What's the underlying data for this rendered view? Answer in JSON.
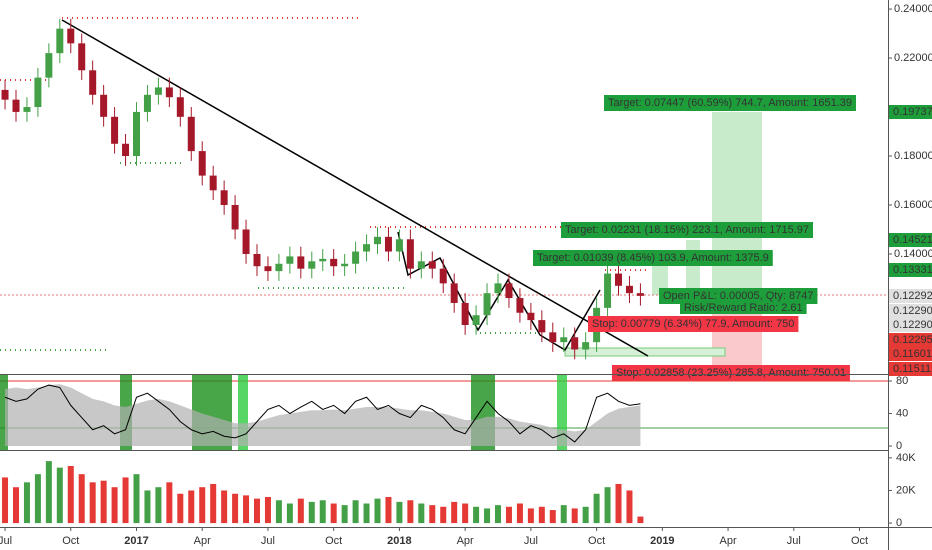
{
  "chart_data": {
    "type": "candlestick",
    "x": [
      0,
      0.5,
      1,
      1.5,
      2,
      2.5,
      3,
      3.5,
      4,
      4.5,
      5,
      5.5,
      6,
      6.5,
      7,
      7.5,
      8,
      8.5,
      9,
      9.5,
      10,
      10.5,
      11,
      11.5,
      12,
      12.5,
      13,
      13.5,
      14,
      14.5,
      15,
      15.5,
      16,
      16.5,
      17,
      17.5,
      18,
      18.5,
      19,
      19.5,
      20,
      20.5,
      21,
      21.5,
      22,
      22.5,
      23,
      23.5,
      24,
      24.5,
      25,
      25.5,
      26,
      26.5,
      27,
      27.5,
      28,
      28.5,
      29
    ],
    "open": [
      0.207,
      0.203,
      0.198,
      0.2,
      0.212,
      0.222,
      0.232,
      0.226,
      0.215,
      0.205,
      0.196,
      0.185,
      0.18,
      0.198,
      0.205,
      0.208,
      0.204,
      0.196,
      0.182,
      0.172,
      0.166,
      0.16,
      0.15,
      0.14,
      0.135,
      0.133,
      0.136,
      0.139,
      0.134,
      0.137,
      0.138,
      0.135,
      0.136,
      0.141,
      0.144,
      0.147,
      0.141,
      0.146,
      0.134,
      0.137,
      0.134,
      0.128,
      0.12,
      0.111,
      0.115,
      0.124,
      0.128,
      0.122,
      0.116,
      0.113,
      0.108,
      0.104,
      0.106,
      0.101,
      0.104,
      0.118,
      0.132,
      0.127,
      0.124
    ],
    "high": [
      0.211,
      0.207,
      0.204,
      0.216,
      0.226,
      0.236,
      0.236,
      0.23,
      0.219,
      0.209,
      0.2,
      0.189,
      0.202,
      0.209,
      0.212,
      0.212,
      0.208,
      0.2,
      0.186,
      0.176,
      0.17,
      0.164,
      0.154,
      0.144,
      0.139,
      0.14,
      0.143,
      0.143,
      0.141,
      0.142,
      0.142,
      0.14,
      0.145,
      0.148,
      0.151,
      0.151,
      0.15,
      0.15,
      0.141,
      0.141,
      0.138,
      0.132,
      0.124,
      0.119,
      0.128,
      0.132,
      0.132,
      0.126,
      0.12,
      0.117,
      0.112,
      0.11,
      0.11,
      0.108,
      0.122,
      0.136,
      0.136,
      0.131,
      0.128
    ],
    "low": [
      0.199,
      0.194,
      0.194,
      0.196,
      0.208,
      0.218,
      0.222,
      0.211,
      0.201,
      0.192,
      0.181,
      0.176,
      0.176,
      0.194,
      0.201,
      0.2,
      0.192,
      0.178,
      0.168,
      0.162,
      0.156,
      0.146,
      0.136,
      0.131,
      0.129,
      0.129,
      0.132,
      0.13,
      0.13,
      0.133,
      0.131,
      0.131,
      0.132,
      0.137,
      0.14,
      0.137,
      0.137,
      0.13,
      0.13,
      0.13,
      0.124,
      0.116,
      0.107,
      0.107,
      0.111,
      0.12,
      0.118,
      0.112,
      0.109,
      0.104,
      0.1,
      0.1,
      0.097,
      0.097,
      0.1,
      0.114,
      0.123,
      0.12,
      0.1189
    ],
    "close": [
      0.203,
      0.198,
      0.2,
      0.212,
      0.222,
      0.232,
      0.226,
      0.215,
      0.205,
      0.196,
      0.185,
      0.18,
      0.198,
      0.205,
      0.208,
      0.204,
      0.196,
      0.182,
      0.172,
      0.166,
      0.16,
      0.15,
      0.14,
      0.135,
      0.133,
      0.136,
      0.139,
      0.134,
      0.137,
      0.138,
      0.135,
      0.136,
      0.141,
      0.144,
      0.147,
      0.141,
      0.146,
      0.134,
      0.137,
      0.134,
      0.128,
      0.12,
      0.111,
      0.115,
      0.124,
      0.128,
      0.122,
      0.116,
      0.113,
      0.108,
      0.104,
      0.106,
      0.101,
      0.104,
      0.118,
      0.132,
      0.127,
      0.124,
      0.1229
    ],
    "up_color": "#43a047",
    "down_color": "#a5182a",
    "xlim": [
      -0.23,
      40.3
    ],
    "xticks": [
      {
        "value": 0,
        "label": "Jul"
      },
      {
        "value": 3,
        "label": "Oct"
      },
      {
        "value": 6,
        "label": "2017"
      },
      {
        "value": 9,
        "label": "Apr"
      },
      {
        "value": 12,
        "label": "Jul"
      },
      {
        "value": 15,
        "label": "Oct"
      },
      {
        "value": 18,
        "label": "2018"
      },
      {
        "value": 21,
        "label": "Apr"
      },
      {
        "value": 24,
        "label": "Jul"
      },
      {
        "value": 27,
        "label": "Oct"
      },
      {
        "value": 30,
        "label": "2019"
      },
      {
        "value": 33,
        "label": "Apr"
      },
      {
        "value": 36,
        "label": "Jul"
      },
      {
        "value": 39,
        "label": "Oct"
      }
    ],
    "ylim": [
      0.0914,
      0.2437
    ],
    "yticks": [
      {
        "value": 0.24,
        "label": "0.24000"
      },
      {
        "value": 0.22,
        "label": "0.22000"
      },
      {
        "value": 0.18,
        "label": "0.18000"
      },
      {
        "value": 0.16,
        "label": "0.16000"
      },
      {
        "value": 0.14,
        "label": "0.14000"
      }
    ],
    "price_labels": [
      {
        "text": "0.19737",
        "color": "#1e9e3a"
      },
      {
        "text": "0.14521",
        "color": "#1e9e3a"
      },
      {
        "text": "0.13331",
        "color": "#1e9e3a"
      },
      {
        "text": "0.12292",
        "color": "#e0e0e0"
      },
      {
        "text": "0.12290",
        "color": "#e0e0e0"
      },
      {
        "text": "0.12290",
        "color": "#e0e0e0"
      },
      {
        "text": "0.12295",
        "color": "#e53935"
      },
      {
        "text": "0.11601",
        "color": "#e53935"
      },
      {
        "text": "0.11511",
        "color": "#e53935"
      }
    ],
    "annotations": [
      {
        "text": "Target: 0.07447 (60.59%) 744.7, Amount: 1651.39",
        "color": "#1e9e3a"
      },
      {
        "text": "Target: 0.02231 (18.15%) 223.1, Amount: 1715.97",
        "color": "#1e9e3a"
      },
      {
        "text": "Target: 0.01039 (8.45%) 103.9, Amount: 1375.9",
        "color": "#1e9e3a"
      },
      {
        "text": "Open P&L: 0.00005, Qty: 8747",
        "color": "#1e9e3a"
      },
      {
        "text": "Risk/Reward Ratio: 2.61",
        "color": "#1e9e3a"
      },
      {
        "text": "Stop: 0.00779 (6.34%) 77.9, Amount: 750",
        "color": "#f23645"
      },
      {
        "text": "Stop: 0.02858 (23.25%) 285.8, Amount: 750.01",
        "color": "#f23645"
      }
    ],
    "oscillator": {
      "ylim": [
        -4.9,
        87.4
      ],
      "yticks": [
        0,
        40,
        80
      ],
      "series": [
        {
          "color": "#000000",
          "values": [
            60,
            55,
            58,
            70,
            75,
            72,
            50,
            35,
            20,
            25,
            15,
            20,
            60,
            65,
            55,
            45,
            30,
            20,
            15,
            18,
            12,
            10,
            15,
            30,
            45,
            50,
            40,
            48,
            55,
            45,
            50,
            40,
            55,
            60,
            45,
            50,
            40,
            35,
            50,
            45,
            35,
            20,
            15,
            35,
            55,
            40,
            30,
            15,
            25,
            20,
            10,
            15,
            5,
            20,
            60,
            65,
            55,
            50,
            52
          ]
        },
        {
          "color": "#b0b0b0",
          "values": [
            70,
            72,
            70,
            72,
            75,
            76,
            72,
            65,
            58,
            55,
            50,
            48,
            52,
            56,
            58,
            55,
            50,
            45,
            40,
            36,
            32,
            28,
            28,
            30,
            34,
            38,
            40,
            42,
            44,
            44,
            45,
            44,
            46,
            48,
            48,
            48,
            46,
            44,
            44,
            42,
            40,
            36,
            32,
            32,
            36,
            36,
            34,
            30,
            28,
            26,
            22,
            20,
            18,
            20,
            30,
            40,
            46,
            48,
            50
          ]
        }
      ]
    },
    "volume": {
      "ylim": [
        -2.4,
        44.2
      ],
      "yticks": [
        0,
        {
          "value": 20,
          "label": "20K"
        },
        {
          "value": 40,
          "label": "40K"
        }
      ],
      "values": [
        28,
        22,
        25,
        30,
        38,
        34,
        35,
        30,
        25,
        26,
        22,
        28,
        30,
        20,
        22,
        25,
        18,
        20,
        22,
        24,
        20,
        18,
        17,
        15,
        16,
        14,
        12,
        15,
        13,
        14,
        12,
        11,
        14,
        12,
        15,
        16,
        13,
        14,
        12,
        11,
        10,
        13,
        12,
        10,
        9,
        11,
        10,
        12,
        9,
        10,
        8,
        11,
        9,
        10,
        18,
        22,
        24,
        20,
        4
      ]
    }
  }
}
